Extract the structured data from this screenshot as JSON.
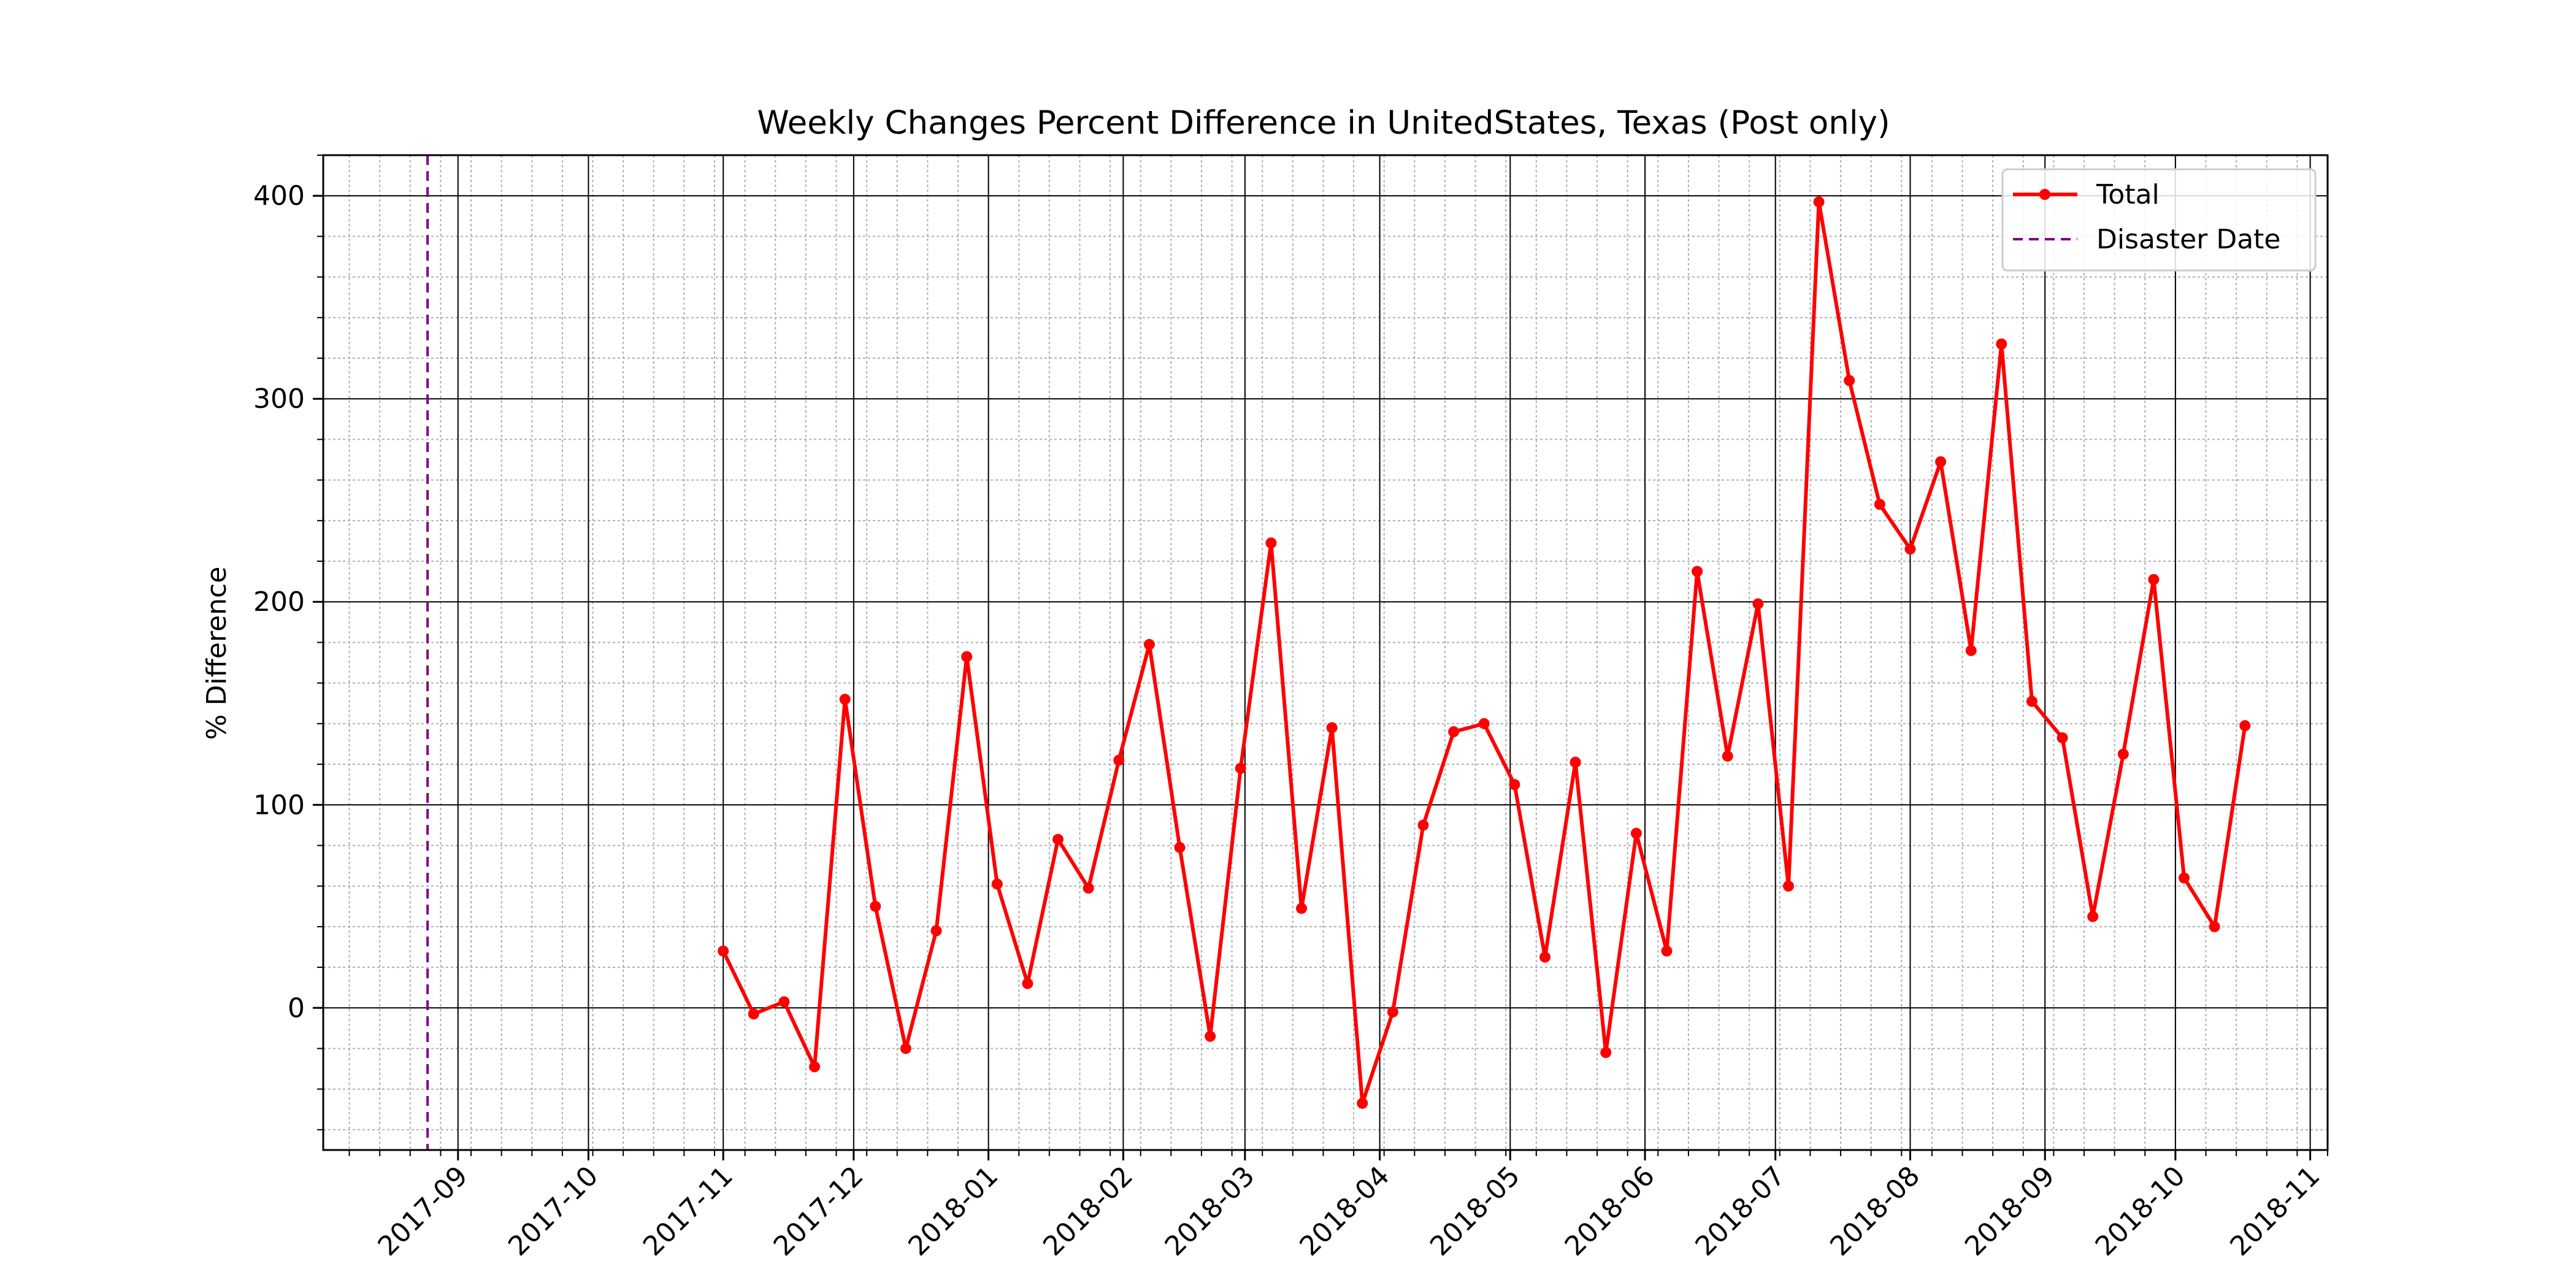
{
  "chart_data": {
    "type": "line",
    "title": "Weekly Changes Percent Difference in UnitedStates, Texas (Post only)",
    "xlabel": "",
    "ylabel": "% Difference",
    "xlim": [
      "2017-08-01",
      "2018-11-05"
    ],
    "ylim": [
      -70,
      420
    ],
    "x_ticks": [
      "2017-09",
      "2017-10",
      "2017-11",
      "2017-12",
      "2018-01",
      "2018-02",
      "2018-03",
      "2018-04",
      "2018-05",
      "2018-06",
      "2018-07",
      "2018-08",
      "2018-09",
      "2018-10",
      "2018-11"
    ],
    "y_ticks": [
      0,
      100,
      200,
      300,
      400
    ],
    "grid": {
      "major": true,
      "minor": true
    },
    "legend_position": "top-right",
    "colors": {
      "series": "#ff0000",
      "disaster": "#800080",
      "major_grid": "#000000",
      "minor_grid": "#b0b0b0"
    },
    "series": [
      {
        "name": "Total",
        "x": [
          "2017-11-01",
          "2017-11-08",
          "2017-11-15",
          "2017-11-22",
          "2017-11-29",
          "2017-12-06",
          "2017-12-13",
          "2017-12-20",
          "2017-12-27",
          "2018-01-03",
          "2018-01-10",
          "2018-01-17",
          "2018-01-24",
          "2018-01-31",
          "2018-02-07",
          "2018-02-14",
          "2018-02-21",
          "2018-02-28",
          "2018-03-07",
          "2018-03-14",
          "2018-03-21",
          "2018-03-28",
          "2018-04-04",
          "2018-04-11",
          "2018-04-18",
          "2018-04-25",
          "2018-05-02",
          "2018-05-09",
          "2018-05-16",
          "2018-05-23",
          "2018-05-30",
          "2018-06-06",
          "2018-06-13",
          "2018-06-20",
          "2018-06-27",
          "2018-07-04",
          "2018-07-11",
          "2018-07-18",
          "2018-07-25",
          "2018-08-01",
          "2018-08-08",
          "2018-08-15",
          "2018-08-22",
          "2018-08-29",
          "2018-09-05",
          "2018-09-12",
          "2018-09-19",
          "2018-09-26",
          "2018-10-03",
          "2018-10-10",
          "2018-10-17"
        ],
        "values": [
          28,
          -3,
          3,
          -29,
          152,
          50,
          -20,
          38,
          173,
          61,
          12,
          83,
          59,
          122,
          179,
          79,
          -14,
          118,
          229,
          49,
          138,
          -47,
          -2,
          90,
          136,
          140,
          110,
          25,
          121,
          -22,
          86,
          28,
          215,
          124,
          199,
          60,
          397,
          309,
          248,
          226,
          269,
          176,
          327,
          151,
          133,
          45,
          125,
          211,
          64,
          40,
          139
        ]
      }
    ],
    "annotations": [
      {
        "type": "vline",
        "label": "Disaster Date",
        "x": "2017-08-25",
        "style": "dashed"
      }
    ]
  }
}
